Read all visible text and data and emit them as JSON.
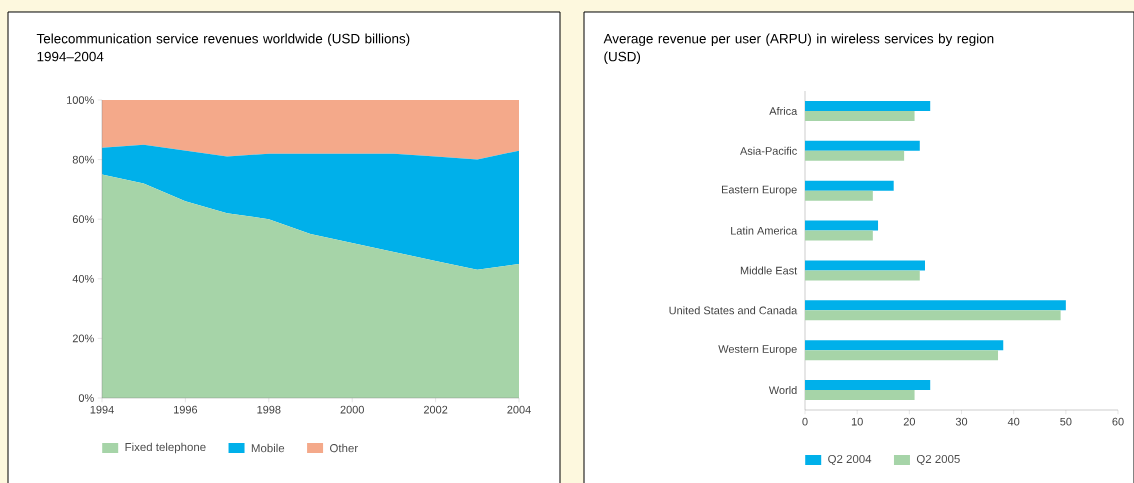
{
  "chart_data": [
    {
      "type": "area",
      "stacked": true,
      "title": "Telecommunication service revenues worldwide (USD billions) 1994–2004",
      "x": [
        1994,
        1995,
        1996,
        1997,
        1998,
        1999,
        2000,
        2001,
        2002,
        2003,
        2004
      ],
      "series": [
        {
          "name": "Fixed telephone",
          "color": "#a6d4a8",
          "values": [
            75,
            72,
            66,
            62,
            60,
            55,
            52,
            49,
            46,
            43,
            45
          ]
        },
        {
          "name": "Mobile",
          "color": "#00b0ea",
          "values": [
            9,
            13,
            17,
            19,
            22,
            27,
            30,
            33,
            35,
            37,
            38
          ]
        },
        {
          "name": "Other",
          "color": "#f4a98a",
          "values": [
            16,
            15,
            17,
            19,
            18,
            18,
            18,
            18,
            19,
            20,
            17
          ]
        }
      ],
      "xlim": [
        1994,
        2004
      ],
      "xticks": [
        1994,
        1996,
        1998,
        2000,
        2002,
        2004
      ],
      "ylim": [
        0,
        100
      ],
      "yticks": [
        {
          "value": 0,
          "label": "0%"
        },
        {
          "value": 20,
          "label": "20%"
        },
        {
          "value": 40,
          "label": "40%"
        },
        {
          "value": 60,
          "label": "60%"
        },
        {
          "value": 80,
          "label": "80%"
        },
        {
          "value": 100,
          "label": "100%"
        }
      ],
      "legend": "bottom"
    },
    {
      "type": "bar",
      "orientation": "horizontal",
      "title": "Average revenue per user (ARPU) in wireless services by region (USD)",
      "categories": [
        "Africa",
        "Asia-Pacific",
        "Eastern Europe",
        "Latin America",
        "Middle East",
        "United States and Canada",
        "Western Europe",
        "World"
      ],
      "series": [
        {
          "name": "Q2 2004",
          "color": "#00b0ea",
          "values": [
            24,
            22,
            17,
            14,
            23,
            50,
            38,
            24
          ]
        },
        {
          "name": "Q2 2005",
          "color": "#a6d4a8",
          "values": [
            21,
            19,
            13,
            13,
            22,
            49,
            37,
            21
          ]
        }
      ],
      "xlim": [
        0,
        60
      ],
      "xticks": [
        0,
        10,
        20,
        30,
        40,
        50,
        60
      ],
      "legend": "bottom"
    }
  ]
}
